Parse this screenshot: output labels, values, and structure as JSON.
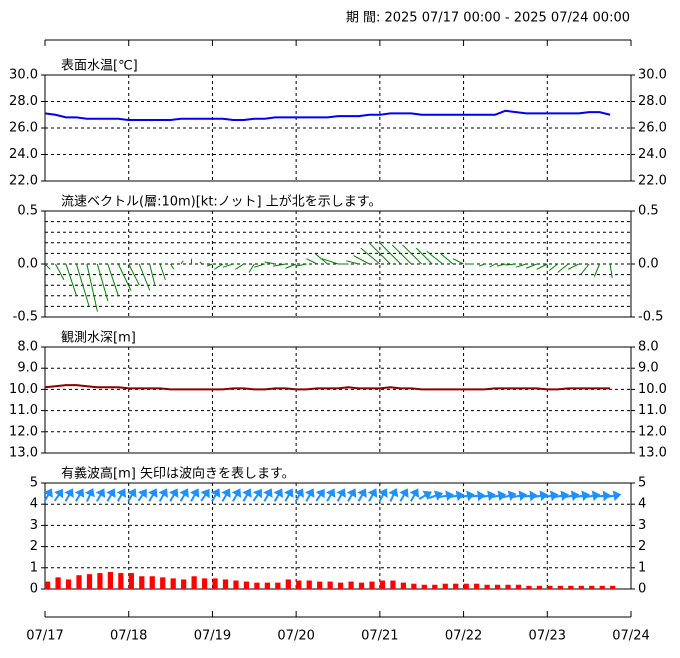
{
  "header": "期 間: 2025 07/17 00:00 - 2025 07/24 00:00",
  "chart_data": [
    {
      "type": "line",
      "title": "表面水温[℃]",
      "color": "#0000ee",
      "x": [
        0,
        0.125,
        0.25,
        0.375,
        0.5,
        0.625,
        0.75,
        0.875,
        1,
        1.125,
        1.25,
        1.375,
        1.5,
        1.625,
        1.75,
        1.875,
        2,
        2.125,
        2.25,
        2.375,
        2.5,
        2.625,
        2.75,
        2.875,
        3,
        3.125,
        3.25,
        3.375,
        3.5,
        3.625,
        3.75,
        3.875,
        4,
        4.125,
        4.25,
        4.375,
        4.5,
        4.625,
        4.75,
        4.875,
        5,
        5.125,
        5.25,
        5.375,
        5.5,
        5.625,
        5.75,
        5.875,
        6,
        6.125,
        6.25,
        6.375,
        6.5,
        6.625,
        6.75
      ],
      "values": [
        27.1,
        27.0,
        26.8,
        26.8,
        26.7,
        26.7,
        26.7,
        26.7,
        26.6,
        26.6,
        26.6,
        26.6,
        26.6,
        26.7,
        26.7,
        26.7,
        26.7,
        26.7,
        26.6,
        26.6,
        26.7,
        26.7,
        26.8,
        26.8,
        26.8,
        26.8,
        26.8,
        26.8,
        26.9,
        26.9,
        26.9,
        27.0,
        27.0,
        27.1,
        27.1,
        27.1,
        27.0,
        27.0,
        27.0,
        27.0,
        27.0,
        27.0,
        27.0,
        27.0,
        27.3,
        27.2,
        27.1,
        27.1,
        27.1,
        27.1,
        27.1,
        27.1,
        27.2,
        27.2,
        27.0
      ],
      "ylim": [
        22,
        30
      ],
      "yticks": [
        {
          "value": 22,
          "label": "22.0"
        },
        {
          "value": 24,
          "label": "24.0"
        },
        {
          "value": 26,
          "label": "26.0"
        },
        {
          "value": 28,
          "label": "28.0"
        },
        {
          "value": 30,
          "label": "30.0"
        }
      ]
    },
    {
      "type": "stick",
      "title": "流速ベクトル(層:10m)[kt:ノット]  上が北を示します。",
      "color": "#008000",
      "x": [
        0,
        0.125,
        0.25,
        0.375,
        0.5,
        0.625,
        0.75,
        0.875,
        1,
        1.125,
        1.25,
        1.375,
        1.5,
        1.625,
        1.75,
        1.875,
        2,
        2.125,
        2.25,
        2.375,
        2.5,
        2.625,
        2.75,
        2.875,
        3,
        3.125,
        3.25,
        3.375,
        3.5,
        3.625,
        3.75,
        3.875,
        4,
        4.125,
        4.25,
        4.375,
        4.5,
        4.625,
        4.75,
        4.875,
        5,
        5.125,
        5.25,
        5.375,
        5.5,
        5.625,
        5.75,
        5.875,
        6,
        6.125,
        6.25,
        6.375,
        6.5,
        6.625,
        6.75
      ],
      "u": [
        0.05,
        0.08,
        0.1,
        0.12,
        0.1,
        0.1,
        0.1,
        0.12,
        0.1,
        0.1,
        0.05,
        0.05,
        0.03,
        0.02,
        0.0,
        -0.02,
        -0.05,
        -0.08,
        -0.1,
        -0.08,
        -0.05,
        -0.1,
        -0.1,
        -0.12,
        -0.1,
        -0.1,
        -0.1,
        -0.12,
        -0.15,
        -0.1,
        -0.12,
        -0.15,
        -0.18,
        -0.2,
        -0.2,
        -0.18,
        -0.18,
        -0.15,
        -0.15,
        -0.12,
        -0.1,
        -0.08,
        -0.05,
        -0.05,
        -0.08,
        -0.1,
        -0.1,
        -0.1,
        -0.1,
        -0.08,
        -0.1,
        -0.1,
        -0.08,
        -0.05,
        0.02
      ],
      "v": [
        -0.05,
        -0.15,
        -0.3,
        -0.4,
        -0.45,
        -0.35,
        -0.3,
        -0.25,
        -0.2,
        -0.25,
        -0.2,
        -0.15,
        -0.05,
        0.03,
        0.05,
        0.02,
        -0.02,
        -0.05,
        -0.03,
        -0.05,
        -0.08,
        -0.03,
        0.02,
        -0.02,
        -0.04,
        -0.02,
        0.05,
        0.1,
        0.05,
        0.0,
        0.03,
        0.08,
        0.15,
        0.2,
        0.2,
        0.18,
        0.18,
        0.15,
        0.12,
        0.1,
        0.05,
        0.0,
        -0.02,
        -0.03,
        -0.02,
        -0.01,
        -0.03,
        -0.04,
        -0.05,
        -0.06,
        -0.08,
        -0.05,
        -0.1,
        -0.12,
        -0.13
      ],
      "ylim": [
        -0.5,
        0.5
      ],
      "yticks": [
        -0.5,
        {
          "value": 0,
          "label": "0.0"
        },
        0.5
      ],
      "ygrid": [
        -0.4,
        -0.3,
        -0.2,
        -0.1,
        0.1,
        0.2,
        0.3,
        0.4
      ]
    },
    {
      "type": "line",
      "title": "観測水深[m]",
      "color": "#8b0000",
      "x": [
        0,
        0.125,
        0.25,
        0.375,
        0.5,
        0.625,
        0.75,
        0.875,
        1,
        1.125,
        1.25,
        1.375,
        1.5,
        1.625,
        1.75,
        1.875,
        2,
        2.125,
        2.25,
        2.375,
        2.5,
        2.625,
        2.75,
        2.875,
        3,
        3.125,
        3.25,
        3.375,
        3.5,
        3.625,
        3.75,
        3.875,
        4,
        4.125,
        4.25,
        4.375,
        4.5,
        4.625,
        4.75,
        4.875,
        5,
        5.125,
        5.25,
        5.375,
        5.5,
        5.625,
        5.75,
        5.875,
        6,
        6.125,
        6.25,
        6.375,
        6.5,
        6.625,
        6.75
      ],
      "values": [
        9.9,
        9.85,
        9.8,
        9.8,
        9.85,
        9.9,
        9.9,
        9.9,
        9.95,
        9.95,
        9.95,
        9.95,
        10.0,
        10.0,
        10.0,
        10.0,
        10.0,
        10.0,
        9.95,
        9.95,
        10.0,
        10.0,
        9.95,
        9.95,
        10.0,
        10.0,
        9.95,
        9.95,
        9.95,
        9.9,
        9.95,
        9.95,
        9.95,
        9.9,
        9.95,
        9.95,
        10.0,
        10.0,
        10.0,
        10.0,
        10.0,
        10.0,
        10.0,
        9.95,
        9.95,
        9.95,
        9.95,
        9.95,
        10.0,
        10.0,
        9.95,
        9.95,
        9.95,
        9.95,
        9.95
      ],
      "ylim": [
        13,
        8
      ],
      "yticks": [
        {
          "value": 8,
          "label": "8.0"
        },
        {
          "value": 9,
          "label": "9.0"
        },
        {
          "value": 10,
          "label": "10.0"
        },
        {
          "value": 11,
          "label": "11.0"
        },
        {
          "value": 12,
          "label": "12.0"
        },
        {
          "value": 13,
          "label": "13.0"
        }
      ]
    },
    {
      "type": "bar",
      "title": "有義波高[m]  矢印は波向きを表します。",
      "color": "#ff0000",
      "arrow_color": "#1e90ff",
      "x": [
        0,
        0.125,
        0.25,
        0.375,
        0.5,
        0.625,
        0.75,
        0.875,
        1,
        1.125,
        1.25,
        1.375,
        1.5,
        1.625,
        1.75,
        1.875,
        2,
        2.125,
        2.25,
        2.375,
        2.5,
        2.625,
        2.75,
        2.875,
        3,
        3.125,
        3.25,
        3.375,
        3.5,
        3.625,
        3.75,
        3.875,
        4,
        4.125,
        4.25,
        4.375,
        4.5,
        4.625,
        4.75,
        4.875,
        5,
        5.125,
        5.25,
        5.375,
        5.5,
        5.625,
        5.75,
        5.875,
        6,
        6.125,
        6.25,
        6.375,
        6.5,
        6.625,
        6.75
      ],
      "values": [
        0.35,
        0.55,
        0.45,
        0.65,
        0.7,
        0.75,
        0.8,
        0.75,
        0.75,
        0.6,
        0.6,
        0.55,
        0.5,
        0.45,
        0.6,
        0.5,
        0.5,
        0.45,
        0.4,
        0.35,
        0.3,
        0.3,
        0.3,
        0.45,
        0.4,
        0.4,
        0.35,
        0.35,
        0.3,
        0.35,
        0.3,
        0.35,
        0.4,
        0.4,
        0.3,
        0.25,
        0.2,
        0.2,
        0.25,
        0.25,
        0.25,
        0.25,
        0.2,
        0.2,
        0.2,
        0.2,
        0.15,
        0.15,
        0.15,
        0.15,
        0.15,
        0.15,
        0.15,
        0.15,
        0.15
      ],
      "direction": [
        30,
        35,
        30,
        30,
        25,
        30,
        30,
        30,
        30,
        35,
        30,
        30,
        30,
        30,
        30,
        35,
        30,
        30,
        30,
        30,
        35,
        30,
        30,
        30,
        30,
        30,
        35,
        30,
        30,
        30,
        30,
        30,
        30,
        25,
        30,
        30,
        60,
        70,
        80,
        80,
        80,
        85,
        80,
        80,
        75,
        80,
        85,
        80,
        80,
        80,
        80,
        80,
        80,
        85,
        80
      ],
      "ylim": [
        0,
        5
      ],
      "yticks": [
        0,
        1,
        2,
        3,
        4,
        5
      ],
      "xlim": [
        0,
        7
      ],
      "xticks": [
        {
          "value": 0,
          "label": "07/17"
        },
        {
          "value": 1,
          "label": "07/18"
        },
        {
          "value": 2,
          "label": "07/19"
        },
        {
          "value": 3,
          "label": "07/20"
        },
        {
          "value": 4,
          "label": "07/21"
        },
        {
          "value": 5,
          "label": "07/22"
        },
        {
          "value": 6,
          "label": "07/23"
        },
        {
          "value": 7,
          "label": "07/24"
        }
      ]
    }
  ]
}
